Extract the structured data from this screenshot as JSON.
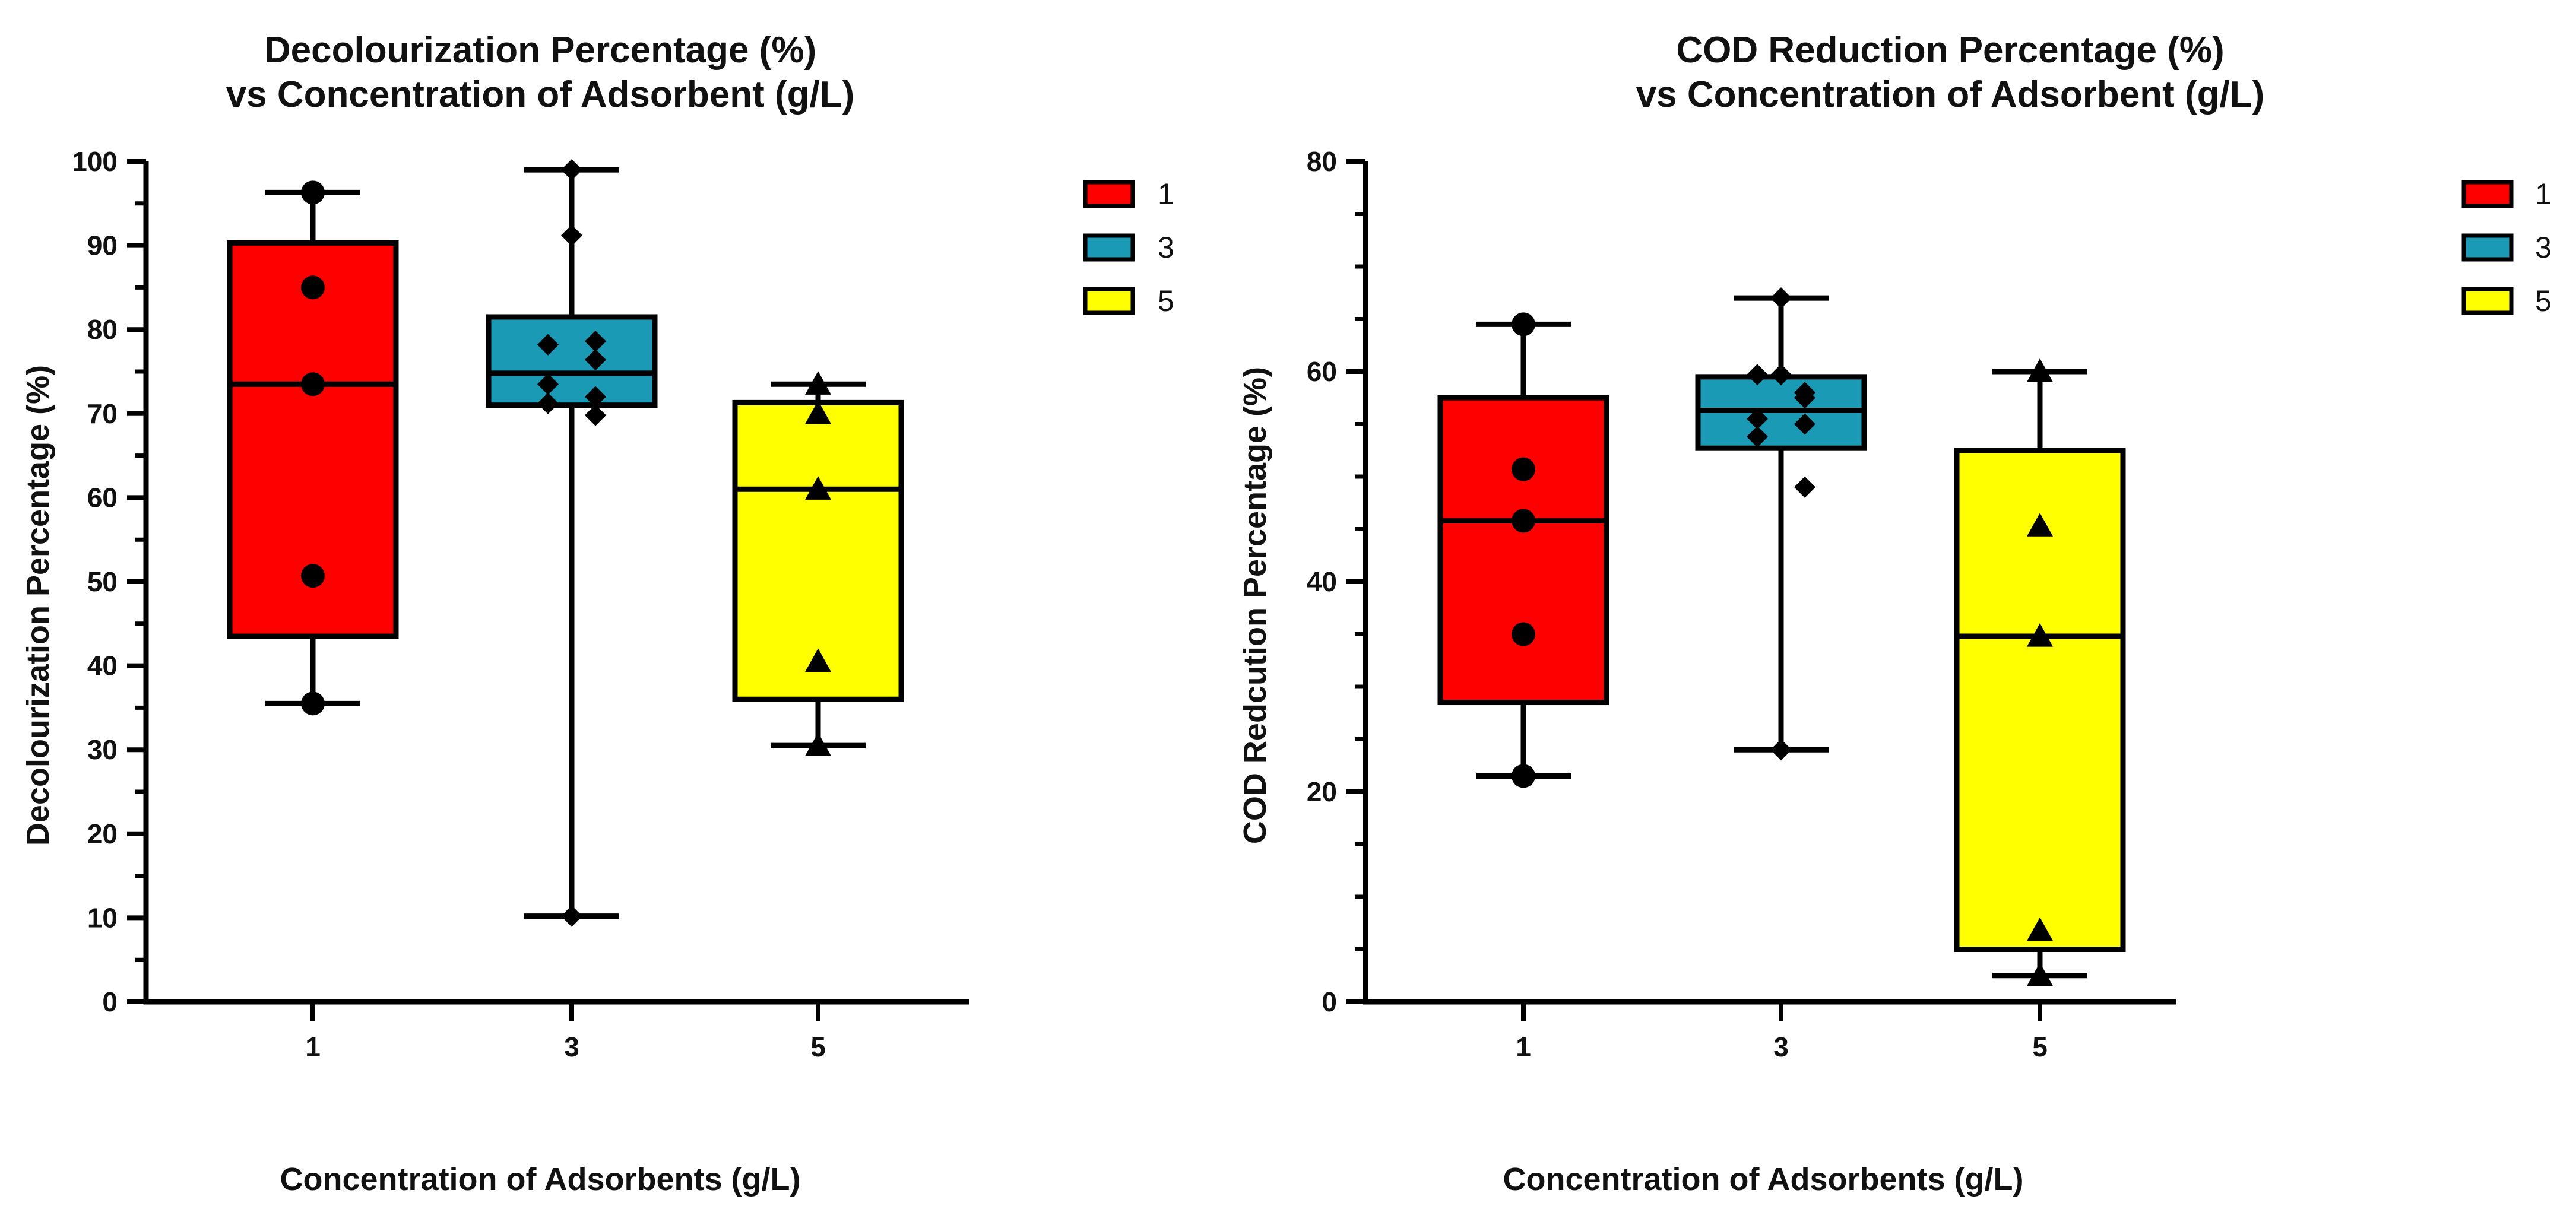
{
  "chart_data": [
    {
      "type": "box",
      "title": [
        "Decolourization Percentage (%)",
        "vs Concentration of Adsorbent (g/L)"
      ],
      "xlabel": "Concentration of Adsorbents (g/L)",
      "ylabel": "Decolourization Percentage (%)",
      "ylim": [
        0,
        100
      ],
      "yticks": [
        0,
        10,
        20,
        30,
        40,
        50,
        60,
        70,
        80,
        90,
        100
      ],
      "categories": [
        "1",
        "3",
        "5"
      ],
      "legend": [
        "1",
        "3",
        "5"
      ],
      "boxes": [
        {
          "category": "1",
          "color": "#ff0000",
          "marker": "circle",
          "min": 35.5,
          "q1": 43.5,
          "median": 73.5,
          "q3": 90.3,
          "max": 96.3,
          "points": [
            96.3,
            85.0,
            73.5,
            50.7,
            35.5
          ]
        },
        {
          "category": "3",
          "color": "#1a9ab5",
          "marker": "diamond",
          "min": 10.2,
          "q1": 71.0,
          "median": 74.8,
          "q3": 81.5,
          "max": 99.0,
          "points": [
            99.0,
            91.2,
            78.2,
            78.6,
            76.4,
            73.5,
            72.0,
            71.2,
            69.8,
            10.2
          ]
        },
        {
          "category": "5",
          "color": "#ffff00",
          "marker": "triangle",
          "min": 30.5,
          "q1": 36.0,
          "median": 61.0,
          "q3": 71.3,
          "max": 73.5,
          "points": [
            73.5,
            70.0,
            61.0,
            40.5,
            30.5
          ]
        }
      ]
    },
    {
      "type": "box",
      "title": [
        "COD Reduction Percentage (%)",
        "vs Concentration of Adsorbent (g/L)"
      ],
      "xlabel": "Concentration of Adsorbents (g/L)",
      "ylabel": "COD Redcution Percentage (%)",
      "ylim": [
        0,
        80
      ],
      "yticks": [
        0,
        20,
        40,
        60,
        80
      ],
      "categories": [
        "1",
        "3",
        "5"
      ],
      "legend": [
        "1",
        "3",
        "5"
      ],
      "boxes": [
        {
          "category": "1",
          "color": "#ff0000",
          "marker": "circle",
          "min": 21.5,
          "q1": 28.5,
          "median": 45.8,
          "q3": 57.5,
          "max": 64.5,
          "points": [
            64.5,
            50.7,
            45.8,
            35.0,
            21.5
          ]
        },
        {
          "category": "3",
          "color": "#1a9ab5",
          "marker": "diamond",
          "min": 24.0,
          "q1": 52.7,
          "median": 56.3,
          "q3": 59.5,
          "max": 67.0,
          "points": [
            67.0,
            59.7,
            59.7,
            58.0,
            57.5,
            55.5,
            55.0,
            53.8,
            49.0,
            24.0
          ]
        },
        {
          "category": "5",
          "color": "#ffff00",
          "marker": "triangle",
          "min": 2.5,
          "q1": 5.0,
          "median": 34.8,
          "q3": 52.5,
          "max": 60.0,
          "points": [
            60.0,
            45.3,
            34.8,
            6.8,
            2.5
          ]
        }
      ]
    }
  ]
}
